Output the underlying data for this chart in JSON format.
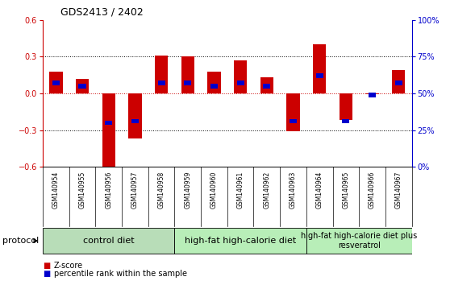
{
  "title": "GDS2413 / 2402",
  "samples": [
    "GSM140954",
    "GSM140955",
    "GSM140956",
    "GSM140957",
    "GSM140958",
    "GSM140959",
    "GSM140960",
    "GSM140961",
    "GSM140962",
    "GSM140963",
    "GSM140964",
    "GSM140965",
    "GSM140966",
    "GSM140967"
  ],
  "z_scores": [
    0.18,
    0.12,
    -0.62,
    -0.37,
    0.31,
    0.3,
    0.18,
    0.27,
    0.13,
    -0.31,
    0.4,
    -0.22,
    -0.01,
    0.19
  ],
  "percentile_ranks": [
    57,
    55,
    30,
    31,
    57,
    57,
    55,
    57,
    55,
    31,
    62,
    31,
    49,
    57
  ],
  "ylim": [
    -0.6,
    0.6
  ],
  "yticks": [
    -0.6,
    -0.3,
    0.0,
    0.3,
    0.6
  ],
  "right_yticks": [
    0,
    25,
    50,
    75,
    100
  ],
  "right_ylim": [
    0,
    100
  ],
  "bar_color_red": "#cc0000",
  "bar_color_blue": "#0000cc",
  "dotted_line_color": "#000000",
  "zero_line_color": "#cc0000",
  "group_labels": [
    "control diet",
    "high-fat high-calorie diet",
    "high-fat high-calorie diet plus\nresveratrol"
  ],
  "group_starts": [
    0,
    5,
    10
  ],
  "group_ends": [
    4,
    9,
    13
  ],
  "group_colors": [
    "#b8ddb8",
    "#b8eeb8",
    "#b8eeb8"
  ],
  "legend_red_label": "Z-score",
  "legend_blue_label": "percentile rank within the sample",
  "protocol_label": "protocol",
  "background_color": "#ffffff",
  "plot_bg_color": "#ffffff",
  "label_bg_color": "#d8d8d8",
  "bar_width": 0.5,
  "percentile_bar_width": 0.28
}
